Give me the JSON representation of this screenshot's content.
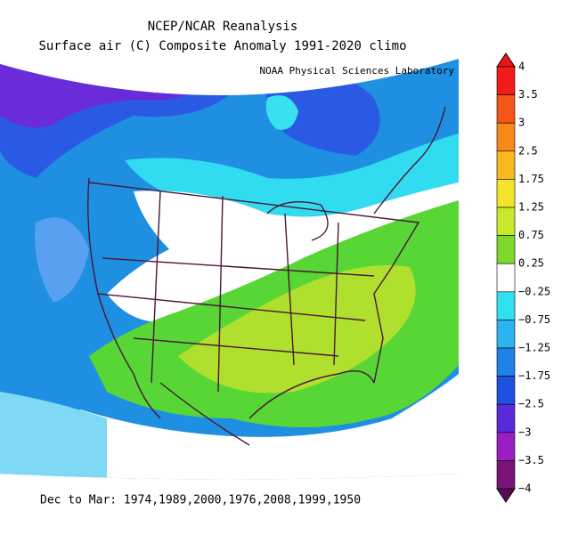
{
  "header": {
    "title": "NCEP/NCAR Reanalysis",
    "subtitle": "Surface air (C) Composite Anomaly 1991-2020 climo",
    "credit": "NOAA Physical Sciences Laboratory"
  },
  "colorbar": {
    "labels": [
      "4",
      "3.5",
      "3",
      "2.5",
      "1.75",
      "1.25",
      "0.75",
      "0.25",
      "−0.25",
      "−0.75",
      "−1.25",
      "−1.75",
      "−2.5",
      "−3",
      "−3.5",
      "−4"
    ],
    "colors": [
      "#f21a1a",
      "#f4561a",
      "#f8881c",
      "#f8b81e",
      "#f2e62a",
      "#c8e82c",
      "#7ed82c",
      "#ffffff",
      "#2ee0f0",
      "#2ab4f0",
      "#1e82e6",
      "#2050e0",
      "#5a2ad8",
      "#9a1ec0",
      "#7a1478"
    ],
    "top_color": "#e8141a",
    "bottom_color": "#5a0a5a"
  },
  "footer": {
    "text": "Dec to Mar: 1974,1989,2000,1976,2008,1999,1950"
  }
}
